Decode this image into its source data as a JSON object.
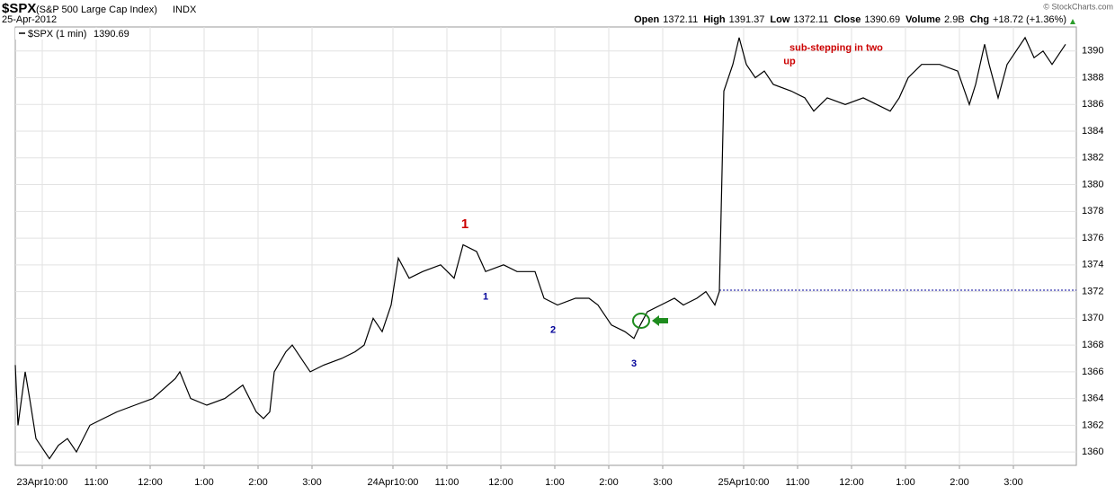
{
  "header": {
    "symbol": "$SPX",
    "name": "(S&P 500 Large Cap Index)",
    "exchange": "INDX",
    "date": "25-Apr-2012",
    "quote": [
      {
        "label": "Open",
        "value": "1372.11"
      },
      {
        "label": "High",
        "value": "1391.37"
      },
      {
        "label": "Low",
        "value": "1372.11"
      },
      {
        "label": "Close",
        "value": "1390.69"
      },
      {
        "label": "Volume",
        "value": "2.9B"
      },
      {
        "label": "Chg",
        "value": "+18.72 (+1.36%)"
      }
    ],
    "watermark": "© StockCharts.com"
  },
  "chart_data": {
    "type": "line",
    "legend": {
      "name": "$SPX (1 min)",
      "value": "1390.69"
    },
    "series": [
      {
        "name": "$SPX",
        "color": "#000000",
        "x": [
          0,
          3,
          11,
          16,
          23,
          38,
          48,
          58,
          68,
          83,
          98,
          113,
          133,
          153,
          178,
          183,
          195,
          213,
          233,
          253,
          268,
          276,
          283,
          288,
          301,
          308,
          328,
          343,
          363,
          378,
          388,
          393,
          398,
          408,
          418,
          426,
          438,
          453,
          473,
          488,
          498,
          513,
          523,
          543,
          558,
          578,
          588,
          603,
          623,
          638,
          648,
          663,
          678,
          688,
          695,
          703,
          718,
          733,
          743,
          758,
          768,
          778,
          783,
          788,
          798,
          805,
          813,
          823,
          833,
          843,
          863,
          878,
          888,
          903,
          923,
          943,
          958,
          973,
          983,
          993,
          1008,
          1028,
          1048,
          1061,
          1068,
          1078,
          1083,
          1093,
          1103,
          1113,
          1123,
          1133,
          1143,
          1153,
          1168
        ],
        "values": [
          1366.5,
          1362,
          1366,
          1364,
          1361,
          1359.5,
          1360.5,
          1361,
          1360,
          1362,
          1362.5,
          1363,
          1363.5,
          1364,
          1365.5,
          1366,
          1364,
          1363.5,
          1364,
          1365,
          1363,
          1362.5,
          1363,
          1366,
          1367.5,
          1368,
          1366,
          1366.5,
          1367,
          1367.5,
          1368,
          1369,
          1370,
          1369,
          1371,
          1374.5,
          1373,
          1373.5,
          1374,
          1373,
          1375.5,
          1375,
          1373.5,
          1374,
          1373.5,
          1373.5,
          1371.5,
          1371,
          1371.5,
          1371.5,
          1371,
          1369.5,
          1369,
          1368.5,
          1369.5,
          1370.5,
          1371,
          1371.5,
          1371,
          1371.5,
          1372,
          1371,
          1372,
          1387,
          1389,
          1391,
          1389,
          1388,
          1388.5,
          1387.5,
          1387,
          1386.5,
          1385.5,
          1386.5,
          1386,
          1386.5,
          1386,
          1385.5,
          1386.5,
          1388,
          1389,
          1389,
          1388.5,
          1386,
          1387.5,
          1390.5,
          1389,
          1386.5,
          1389,
          1390,
          1391,
          1389.5,
          1390,
          1389,
          1390.5
        ]
      }
    ],
    "reference_line": {
      "y": 1372.11,
      "x": [
        783,
        1180
      ],
      "color": "#000099"
    },
    "annotations": [
      {
        "text": "1",
        "x": 500,
        "y": 1377,
        "color": "#cc0000",
        "size": 15
      },
      {
        "text": "1",
        "x": 523,
        "y": 1371.6,
        "color": "#000099",
        "size": 11
      },
      {
        "text": "2",
        "x": 598,
        "y": 1369.1,
        "color": "#000099",
        "size": 11
      },
      {
        "text": "3",
        "x": 688,
        "y": 1366.6,
        "color": "#000099",
        "size": 11
      },
      {
        "text": "sub-stepping in two",
        "x": 861,
        "y": 1390.2,
        "color": "#cc0000",
        "size": 11
      },
      {
        "text": "up",
        "x": 861,
        "y": 1389.2,
        "color": "#cc0000",
        "size": 11
      }
    ],
    "xlim": [
      0,
      1180
    ],
    "xticks": [
      {
        "value": 30,
        "label": "23Apr10:00"
      },
      {
        "value": 90,
        "label": "11:00"
      },
      {
        "value": 150,
        "label": "12:00"
      },
      {
        "value": 210,
        "label": "1:00"
      },
      {
        "value": 270,
        "label": "2:00"
      },
      {
        "value": 330,
        "label": "3:00"
      },
      {
        "value": 420,
        "label": "24Apr10:00"
      },
      {
        "value": 480,
        "label": "11:00"
      },
      {
        "value": 540,
        "label": "12:00"
      },
      {
        "value": 600,
        "label": "1:00"
      },
      {
        "value": 660,
        "label": "2:00"
      },
      {
        "value": 720,
        "label": "3:00"
      },
      {
        "value": 810,
        "label": "25Apr10:00"
      },
      {
        "value": 870,
        "label": "11:00"
      },
      {
        "value": 930,
        "label": "12:00"
      },
      {
        "value": 990,
        "label": "1:00"
      },
      {
        "value": 1050,
        "label": "2:00"
      },
      {
        "value": 1110,
        "label": "3:00"
      }
    ],
    "ylim": [
      1359,
      1391.8
    ],
    "yticks": [
      1360,
      1362,
      1364,
      1366,
      1368,
      1370,
      1372,
      1374,
      1376,
      1378,
      1380,
      1382,
      1384,
      1386,
      1388,
      1390
    ],
    "grid": true
  }
}
